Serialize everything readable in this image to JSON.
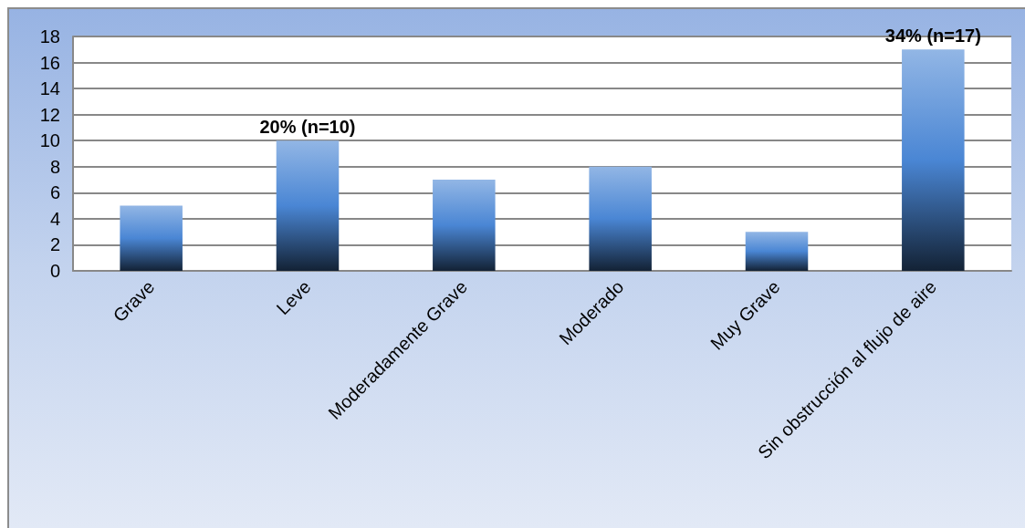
{
  "chart_data": {
    "type": "bar",
    "categories": [
      "Grave",
      "Leve",
      "Moderadamente Grave",
      "Moderado",
      "Muy Grave",
      "Sin obstrucción al flujo de aire"
    ],
    "values": [
      5,
      10,
      7,
      8,
      3,
      17
    ],
    "color": "#4a86d4",
    "value_labels": [
      null,
      "20% (n=10)",
      null,
      null,
      null,
      "34% (n=17)"
    ],
    "ylim": [
      0,
      18
    ],
    "yticks": [
      0,
      2,
      4,
      6,
      8,
      10,
      12,
      14,
      16,
      18
    ],
    "grid": "y"
  }
}
